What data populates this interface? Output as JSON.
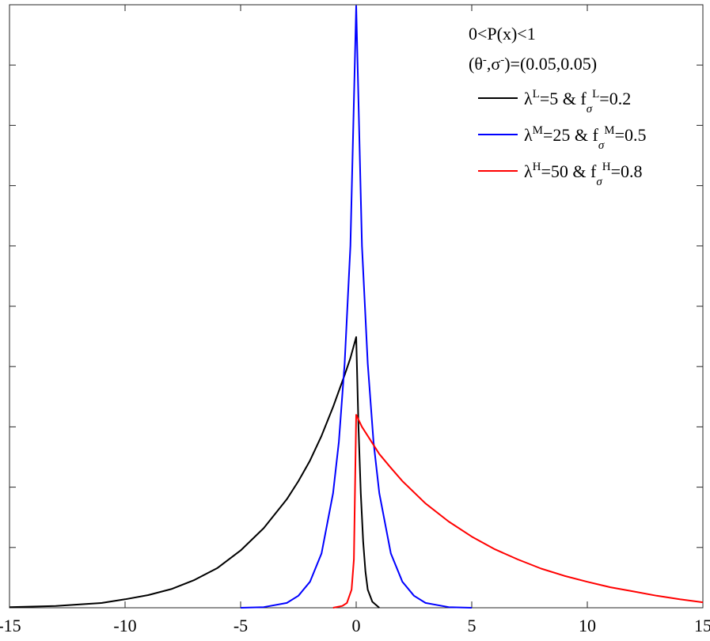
{
  "chart_data": {
    "type": "line",
    "xlim": [
      -15,
      15
    ],
    "ylim": [
      0,
      1
    ],
    "x_ticks": [
      -15,
      -10,
      -5,
      0,
      5,
      10,
      15
    ],
    "x_tick_labels": [
      "-15",
      "-10",
      "-5",
      "0",
      "5",
      "10",
      "15"
    ],
    "y_tick_count": 10,
    "grid": false,
    "legend_position": "top-right",
    "annotations": [
      "0<P(x)<1",
      "(θ",
      ")=(0.05,0.05)"
    ],
    "series": [
      {
        "name": "λL=5 & fσL=0.2",
        "color": "#000000",
        "x": [
          -15,
          -13,
          -11,
          -10,
          -9,
          -8,
          -7,
          -6,
          -5,
          -4,
          -3,
          -2.5,
          -2,
          -1.5,
          -1,
          -0.5,
          -0.25,
          0,
          0.1,
          0.2,
          0.3,
          0.4,
          0.5,
          0.7,
          1.0
        ],
        "y": [
          0.001,
          0.003,
          0.008,
          0.014,
          0.021,
          0.031,
          0.046,
          0.066,
          0.095,
          0.132,
          0.18,
          0.21,
          0.244,
          0.285,
          0.333,
          0.386,
          0.414,
          0.449,
          0.3,
          0.19,
          0.11,
          0.06,
          0.03,
          0.01,
          0.0
        ]
      },
      {
        "name": "λM=25 & fσM=0.5",
        "color": "#0000ff",
        "x": [
          -5,
          -4,
          -3,
          -2.5,
          -2,
          -1.5,
          -1,
          -0.75,
          -0.5,
          -0.25,
          0,
          0.25,
          0.5,
          0.75,
          1,
          1.5,
          2,
          2.5,
          3,
          4,
          5
        ],
        "y": [
          0.0,
          0.001,
          0.008,
          0.02,
          0.043,
          0.09,
          0.19,
          0.275,
          0.405,
          0.6,
          0.998,
          0.6,
          0.405,
          0.275,
          0.19,
          0.09,
          0.043,
          0.02,
          0.008,
          0.001,
          0.0
        ]
      },
      {
        "name": "λH=50 & fσH=0.8",
        "color": "#ff0000",
        "x": [
          -1.0,
          -0.6,
          -0.4,
          -0.2,
          -0.1,
          0,
          0.25,
          0.5,
          1,
          1.5,
          2,
          3,
          4,
          5,
          6,
          7,
          8,
          9,
          10,
          11,
          12,
          13,
          14,
          15
        ],
        "y": [
          0.0,
          0.003,
          0.008,
          0.03,
          0.08,
          0.32,
          0.3,
          0.285,
          0.255,
          0.232,
          0.21,
          0.173,
          0.143,
          0.118,
          0.097,
          0.08,
          0.065,
          0.053,
          0.043,
          0.034,
          0.027,
          0.02,
          0.014,
          0.009
        ]
      }
    ],
    "legend": [
      {
        "sym": "λ",
        "sup": "L",
        "mid": "=5 & f",
        "sub": "σ",
        "sup2": "L",
        "tail": "=0.2"
      },
      {
        "sym": "λ",
        "sup": "M",
        "mid": "=25 & f",
        "sub": "σ",
        "sup2": "M",
        "tail": "=0.5"
      },
      {
        "sym": "λ",
        "sup": "H",
        "mid": "=50 & f",
        "sub": "σ",
        "sup2": "H",
        "tail": "=0.8"
      }
    ]
  }
}
